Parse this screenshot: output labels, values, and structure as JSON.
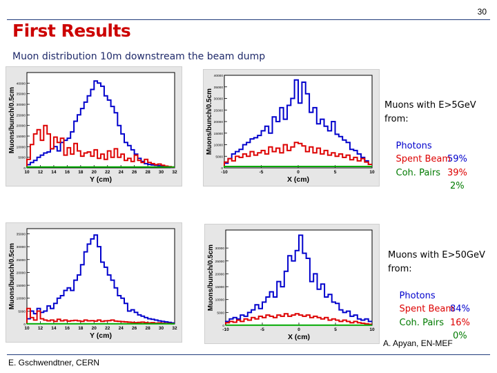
{
  "slide": {
    "number": "30",
    "title": "First Results",
    "subtitle": "Muon distribution 10m downstream the beam dump",
    "footer_left": "E. Gschwendtner, CERN",
    "credit": "A. Apyan, EN-MEF"
  },
  "notes": [
    {
      "line1": "Muons with E>5GeV",
      "line2": "from:",
      "rows": [
        {
          "label": "Photons",
          "value": "59%",
          "color": "#0000cc"
        },
        {
          "label": "Spent Beam",
          "value": "39%",
          "color": "#dd0000"
        },
        {
          "label": "Coh. Pairs",
          "value": "2%",
          "color": "#007a00"
        }
      ]
    },
    {
      "line1": "Muons with E>50GeV",
      "line2": "from:",
      "rows": [
        {
          "label": "Photons",
          "value": "84%",
          "color": "#0000cc"
        },
        {
          "label": "Spent Beam",
          "value": "16%",
          "color": "#dd0000"
        },
        {
          "label": "Coh. Pairs",
          "value": "0%",
          "color": "#007a00"
        }
      ]
    }
  ],
  "chart_data": [
    {
      "type": "line",
      "step": true,
      "xlabel": "Y (cm)",
      "ylabel": "Muons/bunch/0.5cm",
      "xlim": [
        10,
        32
      ],
      "ylim": [
        0,
        45000
      ],
      "xticks": [
        "10",
        "12",
        "14",
        "16",
        "18",
        "20",
        "22",
        "24",
        "26",
        "28",
        "30",
        "32"
      ],
      "yticks": [
        "0",
        "5000",
        "10000",
        "15000",
        "20000",
        "25000",
        "30000",
        "35000",
        "40000"
      ],
      "x": [
        10,
        10.5,
        11,
        11.5,
        12,
        12.5,
        13,
        13.5,
        14,
        14.5,
        15,
        15.5,
        16,
        16.5,
        17,
        17.5,
        18,
        18.5,
        19,
        19.5,
        20,
        20.5,
        21,
        21.5,
        22,
        22.5,
        23,
        23.5,
        24,
        24.5,
        25,
        25.5,
        26,
        26.5,
        27,
        27.5,
        28,
        28.5,
        29,
        29.5,
        30,
        30.5,
        31,
        31.5
      ],
      "series": [
        {
          "color": "#0000cc",
          "values": [
            1500,
            2500,
            3500,
            5000,
            6000,
            7000,
            7500,
            9000,
            10000,
            8000,
            12000,
            13000,
            14000,
            17000,
            22000,
            25000,
            28000,
            31000,
            34000,
            37000,
            41000,
            40000,
            38500,
            34000,
            32000,
            29000,
            26000,
            20000,
            16000,
            12000,
            10500,
            8500,
            6500,
            4500,
            3000,
            2000,
            1600,
            1400,
            1200,
            1000,
            800,
            600,
            400,
            200
          ]
        },
        {
          "color": "#dd0000",
          "values": [
            4000,
            11000,
            16000,
            18000,
            13000,
            20000,
            16000,
            9000,
            14500,
            12000,
            14000,
            6000,
            9500,
            6500,
            11500,
            8000,
            5500,
            7000,
            7500,
            5500,
            8500,
            4500,
            6500,
            4000,
            8000,
            5000,
            9000,
            5000,
            6500,
            3500,
            4500,
            3000,
            6000,
            3500,
            2500,
            4000,
            2500,
            2000,
            1500,
            1800,
            1200,
            800,
            600,
            300
          ]
        },
        {
          "color": "#00aa00",
          "values": [
            400,
            400,
            400,
            400,
            400,
            400,
            400,
            400,
            400,
            400,
            400,
            400,
            400,
            400,
            400,
            400,
            400,
            400,
            400,
            400,
            400,
            400,
            400,
            400,
            400,
            400,
            400,
            400,
            400,
            400,
            400,
            400,
            400,
            400,
            400,
            400,
            400,
            400,
            400,
            400,
            400,
            400,
            400,
            400
          ]
        }
      ]
    },
    {
      "type": "line",
      "step": true,
      "xlabel": "X (cm)",
      "ylabel": "Muons/bunch/0.5cm",
      "xlim": [
        -10,
        10
      ],
      "ylim": [
        0,
        40000
      ],
      "xticks": [
        "-10",
        "-5",
        "0",
        "5",
        "10"
      ],
      "yticks": [
        "0",
        "5000",
        "10000",
        "15000",
        "20000",
        "25000",
        "30000",
        "35000",
        "40000"
      ],
      "x": [
        -10,
        -9.5,
        -9,
        -8.5,
        -8,
        -7.5,
        -7,
        -6.5,
        -6,
        -5.5,
        -5,
        -4.5,
        -4,
        -3.5,
        -3,
        -2.5,
        -2,
        -1.5,
        -1,
        -0.5,
        0,
        0.5,
        1,
        1.5,
        2,
        2.5,
        3,
        3.5,
        4,
        4.5,
        5,
        5.5,
        6,
        6.5,
        7,
        7.5,
        8,
        8.5,
        9,
        9.5
      ],
      "series": [
        {
          "color": "#0000cc",
          "values": [
            2000,
            4000,
            6000,
            7000,
            8000,
            10000,
            11000,
            12500,
            13000,
            14000,
            16000,
            18000,
            15000,
            22000,
            20000,
            26000,
            21000,
            27000,
            30000,
            38000,
            28000,
            37000,
            32000,
            24000,
            26000,
            19000,
            21000,
            18000,
            16000,
            20000,
            14500,
            13500,
            12000,
            11000,
            8000,
            7500,
            6000,
            4500,
            3000,
            1500
          ]
        },
        {
          "color": "#dd0000",
          "values": [
            2500,
            4000,
            3000,
            5000,
            4500,
            6000,
            5000,
            7000,
            5500,
            6500,
            7500,
            6000,
            9000,
            7000,
            8500,
            6500,
            10000,
            7500,
            9000,
            11000,
            10500,
            9500,
            7000,
            9000,
            6500,
            8500,
            6000,
            7500,
            5500,
            6500,
            5000,
            6000,
            4500,
            5500,
            3500,
            4500,
            3000,
            4000,
            2500,
            1500
          ]
        },
        {
          "color": "#00aa00",
          "values": [
            600,
            600,
            600,
            600,
            600,
            600,
            600,
            600,
            600,
            600,
            600,
            600,
            600,
            600,
            600,
            600,
            600,
            600,
            600,
            600,
            600,
            600,
            600,
            600,
            600,
            600,
            600,
            600,
            600,
            600,
            600,
            600,
            600,
            600,
            600,
            600,
            600,
            600,
            600,
            600
          ]
        }
      ]
    },
    {
      "type": "line",
      "step": true,
      "xlabel": "Y (cm)",
      "ylabel": "Muons/bunch/0.5cm",
      "xlim": [
        10,
        32
      ],
      "ylim": [
        0,
        37000
      ],
      "xticks": [
        "10",
        "12",
        "14",
        "16",
        "18",
        "20",
        "22",
        "24",
        "26",
        "28",
        "30",
        "32"
      ],
      "yticks": [
        "0",
        "5000",
        "10000",
        "15000",
        "20000",
        "25000",
        "30000",
        "35000"
      ],
      "x": [
        10,
        10.5,
        11,
        11.5,
        12,
        12.5,
        13,
        13.5,
        14,
        14.5,
        15,
        15.5,
        16,
        16.5,
        17,
        17.5,
        18,
        18.5,
        19,
        19.5,
        20,
        20.5,
        21,
        21.5,
        22,
        22.5,
        23,
        23.5,
        24,
        24.5,
        25,
        25.5,
        26,
        26.5,
        27,
        27.5,
        28,
        28.5,
        29,
        29.5,
        30,
        30.5,
        31,
        31.5
      ],
      "series": [
        {
          "color": "#0000cc",
          "values": [
            2000,
            5000,
            4000,
            6000,
            4500,
            5000,
            7000,
            6000,
            8000,
            10000,
            11000,
            13000,
            14000,
            13000,
            17000,
            19000,
            23000,
            28000,
            31000,
            33000,
            34500,
            30000,
            24000,
            22000,
            19000,
            17000,
            14000,
            11000,
            10000,
            8000,
            5000,
            5500,
            4500,
            3500,
            3000,
            2500,
            2000,
            1800,
            1500,
            1200,
            1000,
            800,
            600,
            400
          ]
        },
        {
          "color": "#dd0000",
          "values": [
            6000,
            2500,
            1500,
            5000,
            2000,
            1500,
            1200,
            1500,
            1000,
            1800,
            1200,
            1500,
            1100,
            1300,
            1400,
            1200,
            1000,
            1500,
            1200,
            1300,
            1100,
            1500,
            1000,
            1200,
            1300,
            1500,
            1100,
            1000,
            900,
            800,
            700,
            600,
            500,
            600,
            700,
            500,
            400,
            500,
            300,
            400,
            300,
            200,
            200,
            100
          ]
        },
        {
          "color": "#00aa00",
          "values": [
            50,
            50,
            50,
            50,
            50,
            50,
            50,
            50,
            50,
            50,
            50,
            50,
            50,
            50,
            50,
            50,
            50,
            50,
            50,
            50,
            50,
            50,
            50,
            50,
            50,
            50,
            50,
            50,
            50,
            50,
            50,
            50,
            50,
            50,
            50,
            50,
            50,
            50,
            50,
            50,
            50,
            50,
            50,
            50
          ]
        }
      ]
    },
    {
      "type": "line",
      "step": true,
      "xlabel": "X (cm)",
      "ylabel": "Muons/bunch/0.5cm",
      "xlim": [
        -10,
        10
      ],
      "ylim": [
        0,
        37000
      ],
      "xticks": [
        "-10",
        "-5",
        "0",
        "5",
        "10"
      ],
      "yticks": [
        "0",
        "5000",
        "10000",
        "15000",
        "20000",
        "25000",
        "30000"
      ],
      "x": [
        -10,
        -9.5,
        -9,
        -8.5,
        -8,
        -7.5,
        -7,
        -6.5,
        -6,
        -5.5,
        -5,
        -4.5,
        -4,
        -3.5,
        -3,
        -2.5,
        -2,
        -1.5,
        -1,
        -0.5,
        0,
        0.5,
        1,
        1.5,
        2,
        2.5,
        3,
        3.5,
        4,
        4.5,
        5,
        5.5,
        6,
        6.5,
        7,
        7.5,
        8,
        8.5,
        9,
        9.5
      ],
      "series": [
        {
          "color": "#0000cc",
          "values": [
            1500,
            2500,
            3000,
            2500,
            4000,
            3500,
            5000,
            6000,
            8000,
            6500,
            9000,
            11000,
            13000,
            11000,
            17000,
            15000,
            21000,
            27000,
            25000,
            29000,
            35000,
            28000,
            26000,
            17000,
            20000,
            14000,
            16000,
            11000,
            12000,
            9000,
            8500,
            6000,
            5000,
            5500,
            3500,
            4000,
            2500,
            2000,
            2500,
            1500
          ]
        },
        {
          "color": "#dd0000",
          "values": [
            1000,
            1500,
            1200,
            2000,
            1500,
            2500,
            2000,
            3000,
            2500,
            3500,
            3000,
            4000,
            3500,
            3000,
            4000,
            3500,
            4500,
            3500,
            4000,
            4500,
            4000,
            3500,
            4000,
            3000,
            3500,
            3000,
            2500,
            3000,
            2000,
            2500,
            2000,
            1500,
            2000,
            1500,
            1000,
            1500,
            1000,
            800,
            600,
            400
          ]
        },
        {
          "color": "#00aa00",
          "values": [
            50,
            50,
            50,
            50,
            50,
            50,
            50,
            50,
            50,
            50,
            50,
            50,
            50,
            50,
            50,
            50,
            50,
            50,
            50,
            50,
            50,
            50,
            50,
            50,
            50,
            50,
            50,
            50,
            50,
            50,
            50,
            50,
            50,
            50,
            50,
            50,
            50,
            50,
            50,
            50
          ]
        }
      ]
    }
  ]
}
